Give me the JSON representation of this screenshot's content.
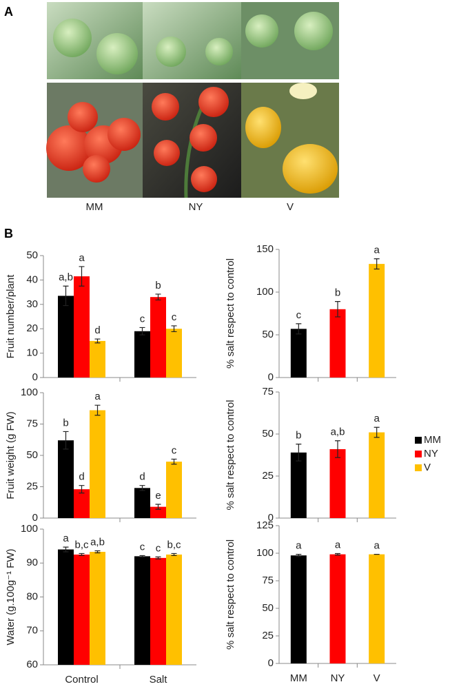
{
  "figure": {
    "panel_a": "A",
    "panel_b": "B",
    "photo_labels": [
      "MM",
      "NY",
      "V"
    ]
  },
  "chart_data": [
    {
      "type": "bar",
      "ylabel": "Fruit number/plant",
      "categories": [
        null,
        null
      ],
      "series": [
        {
          "name": "MM",
          "color": "#000000",
          "values": [
            33.5,
            19
          ],
          "errors": [
            4,
            1.5
          ],
          "annotations": [
            "a,b",
            "c"
          ]
        },
        {
          "name": "NY",
          "color": "#ff0000",
          "values": [
            41.5,
            33
          ],
          "errors": [
            4,
            1.2
          ],
          "annotations": [
            "a",
            "b"
          ]
        },
        {
          "name": "V",
          "color": "#ffc000",
          "values": [
            15,
            20
          ],
          "errors": [
            0.8,
            1.2
          ],
          "annotations": [
            "d",
            "c"
          ]
        }
      ],
      "ylim": [
        0,
        50
      ],
      "yticks": [
        0,
        10,
        20,
        30,
        40,
        50
      ]
    },
    {
      "type": "bar",
      "ylabel": "% salt respect to control",
      "categories": [
        null,
        null,
        null
      ],
      "values": [
        57,
        80,
        133
      ],
      "errors": [
        6,
        9,
        6
      ],
      "annotations": [
        "c",
        "b",
        "a"
      ],
      "colors": [
        "#000000",
        "#ff0000",
        "#ffc000"
      ],
      "ylim": [
        0,
        150
      ],
      "yticks": [
        0,
        50,
        100,
        150
      ]
    },
    {
      "type": "bar",
      "ylabel": "Fruit weight (g FW)",
      "categories": [
        null,
        null
      ],
      "series": [
        {
          "name": "MM",
          "color": "#000000",
          "values": [
            62,
            24
          ],
          "errors": [
            7,
            2
          ],
          "annotations": [
            "b",
            "d"
          ]
        },
        {
          "name": "NY",
          "color": "#ff0000",
          "values": [
            23,
            9
          ],
          "errors": [
            3,
            2
          ],
          "annotations": [
            "d",
            "e"
          ]
        },
        {
          "name": "V",
          "color": "#ffc000",
          "values": [
            86,
            45
          ],
          "errors": [
            4,
            2
          ],
          "annotations": [
            "a",
            "c"
          ]
        }
      ],
      "ylim": [
        0,
        100
      ],
      "yticks": [
        0,
        25,
        50,
        75,
        100
      ],
      "legend": "right"
    },
    {
      "type": "bar",
      "ylabel": "% salt respect to control",
      "categories": [
        null,
        null,
        null
      ],
      "values": [
        39,
        41,
        51
      ],
      "errors": [
        5,
        5,
        3
      ],
      "annotations": [
        "b",
        "a,b",
        "a"
      ],
      "colors": [
        "#000000",
        "#ff0000",
        "#ffc000"
      ],
      "ylim": [
        0,
        75
      ],
      "yticks": [
        0,
        25,
        50,
        75
      ]
    },
    {
      "type": "bar",
      "ylabel": "Water (g.100g⁻¹ FW)",
      "categories": [
        "Control",
        "Salt"
      ],
      "series": [
        {
          "name": "MM",
          "color": "#000000",
          "values": [
            94,
            92
          ],
          "errors": [
            0.7,
            0.2
          ],
          "annotations": [
            "a",
            "c"
          ]
        },
        {
          "name": "NY",
          "color": "#ff0000",
          "values": [
            92.5,
            91.5
          ],
          "errors": [
            0.3,
            0.3
          ],
          "annotations": [
            "b,c",
            "c"
          ]
        },
        {
          "name": "V",
          "color": "#ffc000",
          "values": [
            93.3,
            92.5
          ],
          "errors": [
            0.3,
            0.3
          ],
          "annotations": [
            "a,b",
            "b,c"
          ]
        }
      ],
      "ylim": [
        60,
        100
      ],
      "yticks": [
        60,
        70,
        80,
        90,
        100
      ]
    },
    {
      "type": "bar",
      "ylabel": "% salt respect to control",
      "categories": [
        "MM",
        "NY",
        "V"
      ],
      "values": [
        98,
        99,
        99
      ],
      "errors": [
        1,
        0.7,
        0
      ],
      "annotations": [
        "a",
        "a",
        "a"
      ],
      "colors": [
        "#000000",
        "#ff0000",
        "#ffc000"
      ],
      "ylim": [
        0,
        125
      ],
      "yticks": [
        0,
        25,
        50,
        75,
        100,
        125
      ]
    }
  ]
}
